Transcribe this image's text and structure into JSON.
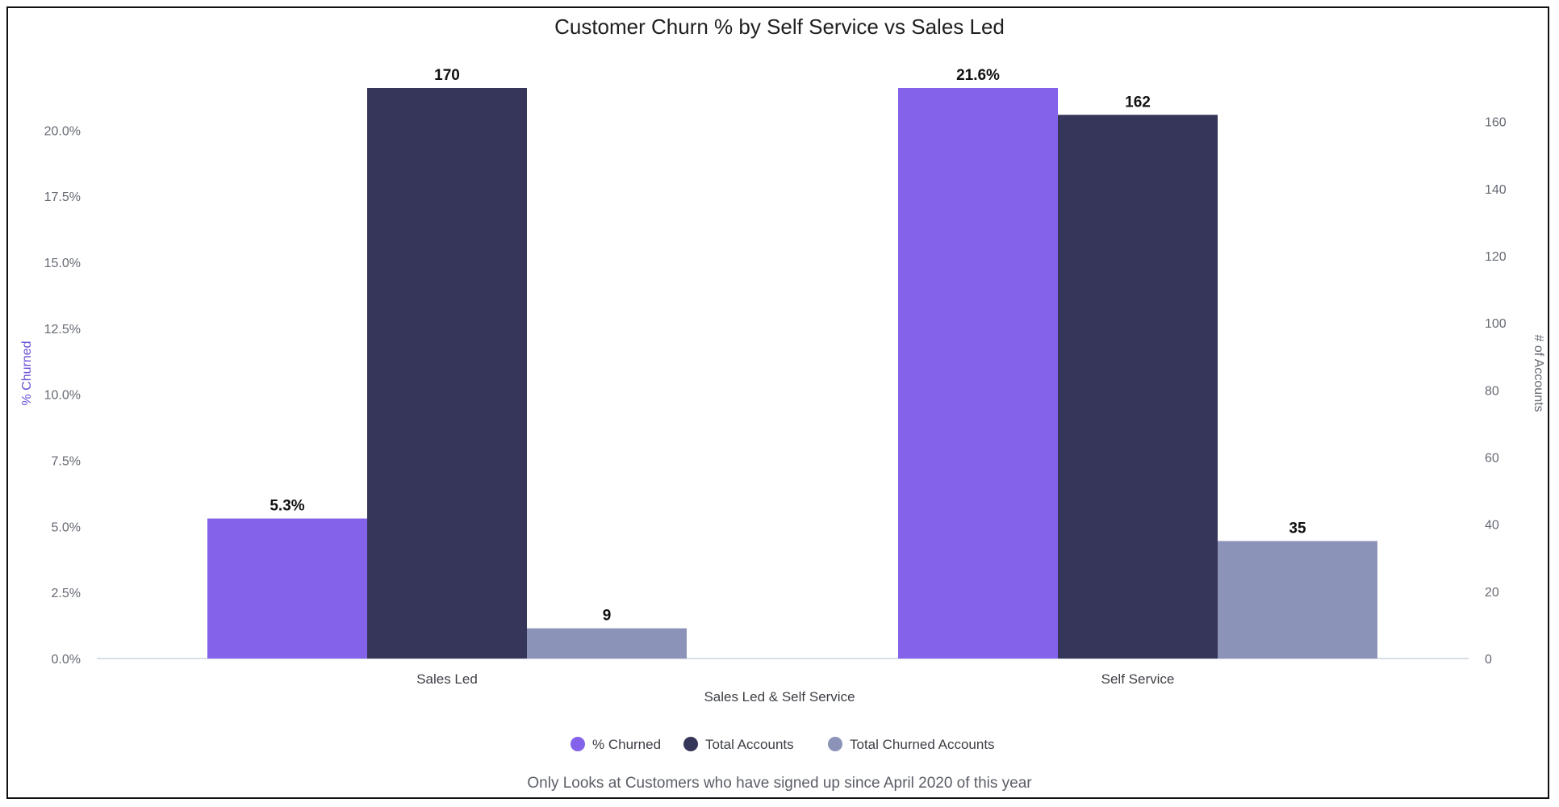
{
  "chart_data": {
    "type": "bar",
    "title": "Customer Churn % by Self Service vs Sales Led",
    "xlabel": "Sales Led & Self Service",
    "categories": [
      "Sales Led",
      "Self Service"
    ],
    "y_left": {
      "label": "% Churned",
      "ylim": [
        0,
        21.6
      ],
      "ticks": [
        0,
        2.5,
        5,
        7.5,
        10,
        12.5,
        15,
        17.5,
        20
      ],
      "tick_labels": [
        "0.0%",
        "2.5%",
        "5.0%",
        "7.5%",
        "10.0%",
        "12.5%",
        "15.0%",
        "17.5%",
        "20.0%"
      ],
      "color": "#6a4fd8"
    },
    "y_right": {
      "label": "# of Accounts",
      "ylim": [
        0,
        170
      ],
      "ticks": [
        0,
        20,
        40,
        60,
        80,
        100,
        120,
        140,
        160
      ],
      "tick_labels": [
        "0",
        "20",
        "40",
        "60",
        "80",
        "100",
        "120",
        "140",
        "160"
      ],
      "color": "#666a73"
    },
    "series": [
      {
        "name": "% Churned",
        "axis": "left",
        "color": "#8462ea",
        "values": [
          5.3,
          21.6
        ],
        "labels": [
          "5.3%",
          "21.6%"
        ]
      },
      {
        "name": "Total Accounts",
        "axis": "right",
        "color": "#353659",
        "values": [
          170,
          162
        ],
        "labels": [
          "170",
          "162"
        ]
      },
      {
        "name": "Total Churned Accounts",
        "axis": "right",
        "color": "#8c93b8",
        "values": [
          9,
          35
        ],
        "labels": [
          "9",
          "35"
        ]
      }
    ],
    "grid": false,
    "legend": "bottom-center",
    "footnote": "Only Looks at Customers who have signed up since April 2020 of this year"
  }
}
